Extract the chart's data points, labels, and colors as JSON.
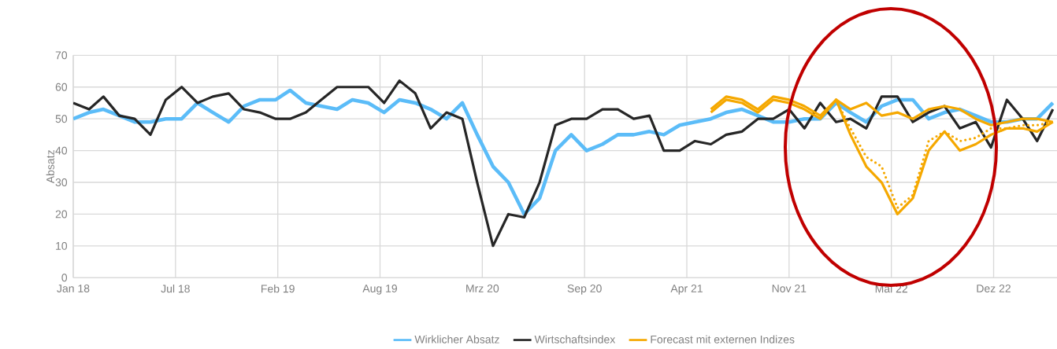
{
  "chart_data": {
    "type": "line",
    "ylabel": "Absatz",
    "x": [
      "2018-01",
      "2018-02",
      "2018-03",
      "2018-04",
      "2018-05",
      "2018-06",
      "2018-07",
      "2018-08",
      "2018-09",
      "2018-10",
      "2018-11",
      "2018-12",
      "2019-01",
      "2019-02",
      "2019-03",
      "2019-04",
      "2019-05",
      "2019-06",
      "2019-07",
      "2019-08",
      "2019-09",
      "2019-10",
      "2019-11",
      "2019-12",
      "2020-01",
      "2020-02",
      "2020-03",
      "2020-04",
      "2020-05",
      "2020-06",
      "2020-07",
      "2020-08",
      "2020-09",
      "2020-10",
      "2020-11",
      "2020-12",
      "2021-01",
      "2021-02",
      "2021-03",
      "2021-04",
      "2021-05",
      "2021-06",
      "2021-07",
      "2021-08",
      "2021-09",
      "2021-10",
      "2021-11",
      "2021-12",
      "2022-01",
      "2022-02",
      "2022-03",
      "2022-04",
      "2022-05",
      "2022-06",
      "2022-07",
      "2022-08",
      "2022-09",
      "2022-10",
      "2022-11",
      "2022-12",
      "2023-01",
      "2023-02",
      "2023-03",
      "2023-04"
    ],
    "series": [
      {
        "name": "Wirklicher Absatz",
        "color": "#5bbcf8",
        "values": [
          50,
          52,
          53,
          51,
          49,
          49,
          50,
          50,
          55,
          52,
          49,
          54,
          56,
          56,
          59,
          55,
          54,
          53,
          56,
          55,
          52,
          56,
          55,
          53,
          50,
          55,
          45,
          35,
          30,
          20,
          25,
          40,
          45,
          40,
          42,
          45,
          45,
          46,
          45,
          48,
          49,
          50,
          52,
          53,
          51,
          49,
          49,
          50,
          50,
          55,
          52,
          49,
          54,
          56,
          56,
          50,
          52,
          53,
          51,
          49,
          49,
          50,
          50,
          55
        ]
      },
      {
        "name": "Wirtschaftsindex",
        "color": "#262626",
        "values": [
          55,
          53,
          57,
          51,
          50,
          45,
          56,
          60,
          55,
          57,
          58,
          53,
          52,
          50,
          50,
          52,
          56,
          60,
          60,
          60,
          55,
          62,
          58,
          47,
          52,
          50,
          30,
          10,
          20,
          19,
          30,
          48,
          50,
          50,
          53,
          53,
          50,
          51,
          40,
          40,
          43,
          42,
          45,
          46,
          50,
          50,
          53,
          47,
          55,
          49,
          50,
          47,
          57,
          57,
          49,
          52,
          54,
          47,
          49,
          41,
          56,
          50,
          43,
          53
        ]
      },
      {
        "name": "Forecast mit externen Indizes",
        "color": "#f5a800",
        "x": [
          "2021-06",
          "2021-07",
          "2021-08",
          "2021-09",
          "2021-10",
          "2021-11",
          "2021-12",
          "2022-01",
          "2022-02",
          "2022-03",
          "2022-04",
          "2022-05",
          "2022-06",
          "2022-07",
          "2022-08",
          "2022-09",
          "2022-10",
          "2022-11",
          "2022-12",
          "2023-01",
          "2023-02",
          "2023-03",
          "2023-04"
        ],
        "values": [
          53,
          57,
          56,
          53,
          57,
          56,
          54,
          51,
          56,
          53,
          55,
          51,
          52,
          50,
          53,
          54,
          53,
          50,
          48,
          49,
          50,
          50,
          49
        ]
      },
      {
        "color": "#f5a800",
        "x": [
          "2021-06",
          "2021-07",
          "2021-08",
          "2021-09",
          "2021-10",
          "2021-11",
          "2021-12",
          "2022-01",
          "2022-02",
          "2022-03",
          "2022-04",
          "2022-05",
          "2022-06",
          "2022-07",
          "2022-08",
          "2022-09",
          "2022-10",
          "2022-11",
          "2022-12",
          "2023-01",
          "2023-02",
          "2023-03",
          "2023-04"
        ],
        "values": [
          52,
          56,
          55,
          52,
          56,
          55,
          53,
          50,
          56,
          45,
          35,
          30,
          20,
          25,
          40,
          46,
          40,
          42,
          45,
          47,
          47,
          46,
          49
        ]
      },
      {
        "color": "#f5a800",
        "line_style": "dotted",
        "x": [
          "2022-02",
          "2022-03",
          "2022-04",
          "2022-05",
          "2022-06",
          "2022-07",
          "2022-08",
          "2022-09",
          "2022-10",
          "2022-11",
          "2022-12",
          "2023-01",
          "2023-02",
          "2023-03",
          "2023-04"
        ],
        "values": [
          56,
          47,
          38,
          35,
          22,
          26,
          43,
          46,
          43,
          44,
          47,
          47,
          48,
          48,
          49
        ]
      }
    ],
    "xlim": [
      "2018-01",
      "2023-04-09"
    ],
    "xticks": [
      {
        "value": "2018-01-01",
        "label": "Jan 18"
      },
      {
        "value": "2018-07-20",
        "label": "Jul 18"
      },
      {
        "value": "2019-02-05",
        "label": "Feb 19"
      },
      {
        "value": "2019-08-24",
        "label": "Aug 19"
      },
      {
        "value": "2020-03-11",
        "label": "Mrz 20"
      },
      {
        "value": "2020-09-27",
        "label": "Sep 20"
      },
      {
        "value": "2021-04-15",
        "label": "Apr 21"
      },
      {
        "value": "2021-11-01",
        "label": "Nov 21"
      },
      {
        "value": "2022-05-20",
        "label": "Mai 22"
      },
      {
        "value": "2022-12-06",
        "label": "Dez 22"
      }
    ],
    "ylim": [
      0,
      70
    ],
    "yticks": [
      0,
      10,
      20,
      30,
      40,
      50,
      60,
      70
    ],
    "grid": true,
    "legend": "bottom"
  }
}
